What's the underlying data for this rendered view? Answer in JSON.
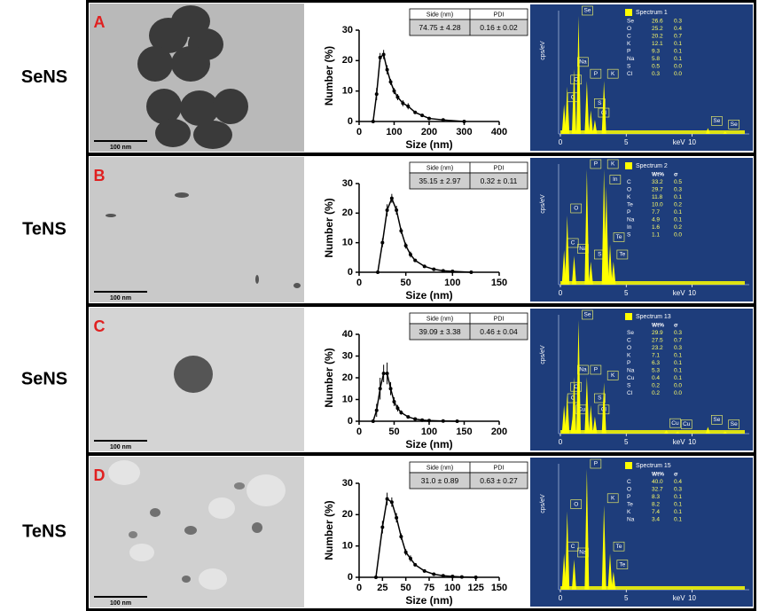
{
  "panels": [
    {
      "letter": "A",
      "label": "SeNS",
      "scale_bar": "100 nm",
      "summary": {
        "headers": [
          "Side (nm)",
          "PDI"
        ],
        "values": [
          "74.75 ± 4.28",
          "0.16 ± 0.02"
        ]
      }
    },
    {
      "letter": "B",
      "label": "TeNS",
      "scale_bar": "100 nm",
      "summary": {
        "headers": [
          "Side (nm)",
          "PDI"
        ],
        "values": [
          "35.15 ± 2.97",
          "0.32 ± 0.11"
        ]
      }
    },
    {
      "letter": "C",
      "label": "SeNS",
      "scale_bar": "100 nm",
      "summary": {
        "headers": [
          "Side (nm)",
          "PDI"
        ],
        "values": [
          "39.09 ± 3.38",
          "0.46 ± 0.04"
        ]
      }
    },
    {
      "letter": "D",
      "label": "TeNS",
      "scale_bar": "100 nm",
      "summary": {
        "headers": [
          "Side (nm)",
          "PDI"
        ],
        "values": [
          "31.0 ± 0.89",
          "0.63 ± 0.27"
        ]
      }
    }
  ],
  "chart_data": [
    {
      "type": "line",
      "x_label": "Size (nm)",
      "y_label": "Number (%)",
      "x": [
        40,
        50,
        60,
        70,
        80,
        90,
        100,
        110,
        125,
        140,
        160,
        180,
        200,
        240,
        300
      ],
      "series": [
        {
          "color": "#000000",
          "values": [
            0,
            9,
            21,
            22,
            17,
            13,
            10,
            8,
            6,
            5,
            3,
            2,
            1,
            0.5,
            0
          ],
          "errors": [
            0,
            2,
            1.5,
            1.5,
            1.5,
            1,
            1,
            1,
            1,
            1,
            0.5,
            0.5,
            0.3,
            0,
            0
          ]
        }
      ],
      "xlim": [
        0,
        400
      ],
      "xticks": [
        0,
        100,
        200,
        300,
        400
      ],
      "ylim": [
        0,
        30
      ],
      "yticks": [
        0,
        10,
        20,
        30
      ]
    },
    {
      "type": "spectrum",
      "x_label": "keV",
      "y_label": "cps/eV",
      "color": "#ffff00",
      "x": [
        0.28,
        0.52,
        1.04,
        1.38,
        2.01,
        2.31,
        2.62,
        3.31,
        11.2,
        12.5
      ],
      "values": [
        25,
        40,
        55,
        100,
        45,
        20,
        12,
        45,
        5,
        2
      ],
      "peak_labels": [
        "C",
        "O",
        "Na",
        "Se",
        "P",
        "S",
        "Cl",
        "K",
        "Se",
        "Se"
      ],
      "xlim": [
        0,
        14
      ],
      "xticks": [
        0,
        5,
        10
      ],
      "ylim": [
        0,
        100
      ],
      "legend_title": "Spectrum 1",
      "legend_rows": [
        [
          "Se",
          "26.6",
          "0.3"
        ],
        [
          "O",
          "25.2",
          "0.4"
        ],
        [
          "C",
          "20.2",
          "0.7"
        ],
        [
          "K",
          "12.1",
          "0.1"
        ],
        [
          "P",
          "9.3",
          "0.1"
        ],
        [
          "Na",
          "5.8",
          "0.1"
        ],
        [
          "S",
          "0.5",
          "0.0"
        ],
        [
          "Cl",
          "0.3",
          "0.0"
        ]
      ]
    },
    {
      "type": "line",
      "x_label": "Size (nm)",
      "y_label": "Number (%)",
      "x": [
        20,
        25,
        30,
        35,
        40,
        45,
        50,
        55,
        60,
        70,
        80,
        90,
        100,
        120
      ],
      "series": [
        {
          "color": "#000000",
          "values": [
            0,
            10,
            21,
            25,
            21,
            14,
            9,
            6,
            4,
            2,
            1,
            0.5,
            0.3,
            0
          ],
          "errors": [
            0,
            1.5,
            2,
            1.5,
            1.5,
            1,
            1,
            1,
            0.5,
            0.5,
            0,
            0,
            0,
            0
          ]
        }
      ],
      "xlim": [
        0,
        150
      ],
      "xticks": [
        0,
        50,
        100,
        150
      ],
      "ylim": [
        0,
        30
      ],
      "yticks": [
        0,
        10,
        20,
        30
      ]
    },
    {
      "type": "spectrum",
      "x_label": "keV",
      "y_label": "cps/eV",
      "color": "#ffff00",
      "x": [
        0.28,
        0.52,
        1.04,
        2.01,
        2.31,
        3.31,
        3.49,
        3.77,
        4.03
      ],
      "values": [
        30,
        60,
        25,
        100,
        20,
        100,
        85,
        35,
        20
      ],
      "peak_labels": [
        "C",
        "O",
        "Na",
        "P",
        "S",
        "K",
        "In",
        "Te",
        "Te"
      ],
      "xlim": [
        0,
        14
      ],
      "xticks": [
        0,
        5,
        10
      ],
      "ylim": [
        0,
        100
      ],
      "legend_title": "Spectrum 2",
      "legend_headers": [
        "Wt%",
        "σ"
      ],
      "legend_rows": [
        [
          "C",
          "33.2",
          "0.5"
        ],
        [
          "O",
          "29.7",
          "0.3"
        ],
        [
          "K",
          "11.8",
          "0.1"
        ],
        [
          "Te",
          "10.0",
          "0.2"
        ],
        [
          "P",
          "7.7",
          "0.1"
        ],
        [
          "Na",
          "4.9",
          "0.1"
        ],
        [
          "In",
          "1.6",
          "0.2"
        ],
        [
          "S",
          "1.1",
          "0.0"
        ]
      ]
    },
    {
      "type": "line",
      "x_label": "Size (nm)",
      "y_label": "Number (%)",
      "x": [
        20,
        25,
        30,
        35,
        40,
        45,
        50,
        55,
        60,
        70,
        80,
        90,
        100,
        120,
        140
      ],
      "series": [
        {
          "color": "#000000",
          "values": [
            0,
            5,
            15,
            22,
            22,
            15,
            9,
            6,
            4,
            2,
            1,
            0.5,
            0.3,
            0.1,
            0
          ],
          "errors": [
            0,
            3,
            5,
            4,
            5,
            3,
            2,
            1.5,
            1,
            0.5,
            0,
            0,
            0,
            0,
            0
          ]
        }
      ],
      "xlim": [
        0,
        200
      ],
      "xticks": [
        0,
        50,
        100,
        150,
        200
      ],
      "ylim": [
        0,
        40
      ],
      "yticks": [
        0,
        10,
        20,
        30,
        40
      ]
    },
    {
      "type": "spectrum",
      "x_label": "keV",
      "y_label": "cps/eV",
      "color": "#ffff00",
      "x": [
        0.28,
        0.52,
        0.93,
        1.04,
        1.38,
        2.01,
        2.31,
        2.62,
        3.31,
        8.04,
        8.9,
        11.2,
        12.5
      ],
      "values": [
        25,
        35,
        15,
        50,
        100,
        50,
        25,
        15,
        45,
        3,
        2,
        6,
        2
      ],
      "peak_labels": [
        "C",
        "O",
        "Cu",
        "Na",
        "Se",
        "P",
        "S",
        "Cl",
        "K",
        "Cu",
        "Cu",
        "Se",
        "Se"
      ],
      "xlim": [
        0,
        14
      ],
      "xticks": [
        0,
        5,
        10
      ],
      "ylim": [
        0,
        100
      ],
      "legend_title": "Spectrum 13",
      "legend_headers": [
        "Wt%",
        "σ"
      ],
      "legend_rows": [
        [
          "Se",
          "29.9",
          "0.3"
        ],
        [
          "C",
          "27.5",
          "0.7"
        ],
        [
          "O",
          "23.2",
          "0.3"
        ],
        [
          "K",
          "7.1",
          "0.1"
        ],
        [
          "P",
          "6.3",
          "0.1"
        ],
        [
          "Na",
          "5.3",
          "0.1"
        ],
        [
          "Cu",
          "0.4",
          "0.1"
        ],
        [
          "S",
          "0.2",
          "0.0"
        ],
        [
          "Cl",
          "0.2",
          "0.0"
        ]
      ]
    },
    {
      "type": "line",
      "x_label": "Size (nm)",
      "y_label": "Number (%)",
      "x": [
        18,
        25,
        30,
        35,
        40,
        45,
        50,
        55,
        60,
        70,
        80,
        90,
        100,
        110,
        125
      ],
      "series": [
        {
          "color": "#000000",
          "values": [
            0,
            16,
            25,
            24,
            19,
            13,
            8,
            6,
            4,
            2,
            1,
            0.5,
            0.3,
            0.1,
            0
          ],
          "errors": [
            0,
            2,
            2,
            1.5,
            1.5,
            1,
            1,
            1,
            0.5,
            0.5,
            0,
            0,
            0,
            0,
            0
          ]
        }
      ],
      "xlim": [
        0,
        150
      ],
      "xticks": [
        0,
        25,
        50,
        75,
        100,
        125,
        150
      ],
      "ylim": [
        0,
        30
      ],
      "yticks": [
        0,
        10,
        20,
        30
      ]
    },
    {
      "type": "spectrum",
      "x_label": "keV",
      "y_label": "cps/eV",
      "color": "#ffff00",
      "x": [
        0.28,
        0.52,
        1.04,
        2.01,
        3.31,
        3.77,
        4.03
      ],
      "values": [
        30,
        65,
        25,
        100,
        70,
        30,
        15
      ],
      "peak_labels": [
        "C",
        "O",
        "Na",
        "P",
        "K",
        "Te",
        "Te"
      ],
      "xlim": [
        0,
        14
      ],
      "xticks": [
        0,
        5,
        10
      ],
      "ylim": [
        0,
        100
      ],
      "legend_title": "Spectrum 15",
      "legend_headers": [
        "Wt%",
        "σ"
      ],
      "legend_rows": [
        [
          "C",
          "40.0",
          "0.4"
        ],
        [
          "O",
          "32.7",
          "0.3"
        ],
        [
          "P",
          "8.3",
          "0.1"
        ],
        [
          "Te",
          "8.2",
          "0.1"
        ],
        [
          "K",
          "7.4",
          "0.1"
        ],
        [
          "Na",
          "3.4",
          "0.1"
        ]
      ]
    }
  ]
}
